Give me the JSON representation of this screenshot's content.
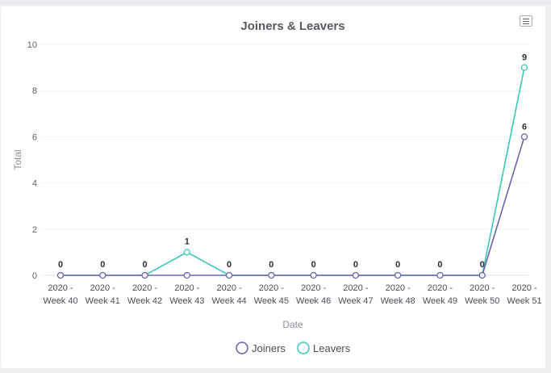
{
  "chart_data": {
    "type": "line",
    "title": "Joiners & Leavers",
    "xlabel": "Date",
    "ylabel": "Total",
    "ylim": [
      0,
      10
    ],
    "yticks": [
      0,
      2,
      4,
      6,
      8,
      10
    ],
    "categories": [
      [
        "2020 -",
        "Week 40"
      ],
      [
        "2020 -",
        "Week 41"
      ],
      [
        "2020 -",
        "Week 42"
      ],
      [
        "2020 -",
        "Week 43"
      ],
      [
        "2020 -",
        "Week 44"
      ],
      [
        "2020 -",
        "Week 45"
      ],
      [
        "2020 -",
        "Week 46"
      ],
      [
        "2020 -",
        "Week 47"
      ],
      [
        "2020 -",
        "Week 48"
      ],
      [
        "2020 -",
        "Week 49"
      ],
      [
        "2020 -",
        "Week 50"
      ],
      [
        "2020 -",
        "Week 51"
      ]
    ],
    "series": [
      {
        "name": "Joiners",
        "color": "#6c63ac",
        "values": [
          0,
          0,
          0,
          0,
          0,
          0,
          0,
          0,
          0,
          0,
          0,
          6
        ]
      },
      {
        "name": "Leavers",
        "color": "#3cc7b8",
        "values": [
          0,
          0,
          0,
          1,
          0,
          0,
          0,
          0,
          0,
          0,
          0,
          9
        ]
      }
    ],
    "data_labels": [
      "0",
      "0",
      "0",
      "1",
      "0",
      "0",
      "0",
      "0",
      "0",
      "0",
      "0",
      "9",
      "6"
    ],
    "legend_position": "bottom-center",
    "grid": true
  },
  "toolbar": {
    "menu_icon": "hamburger-icon"
  }
}
